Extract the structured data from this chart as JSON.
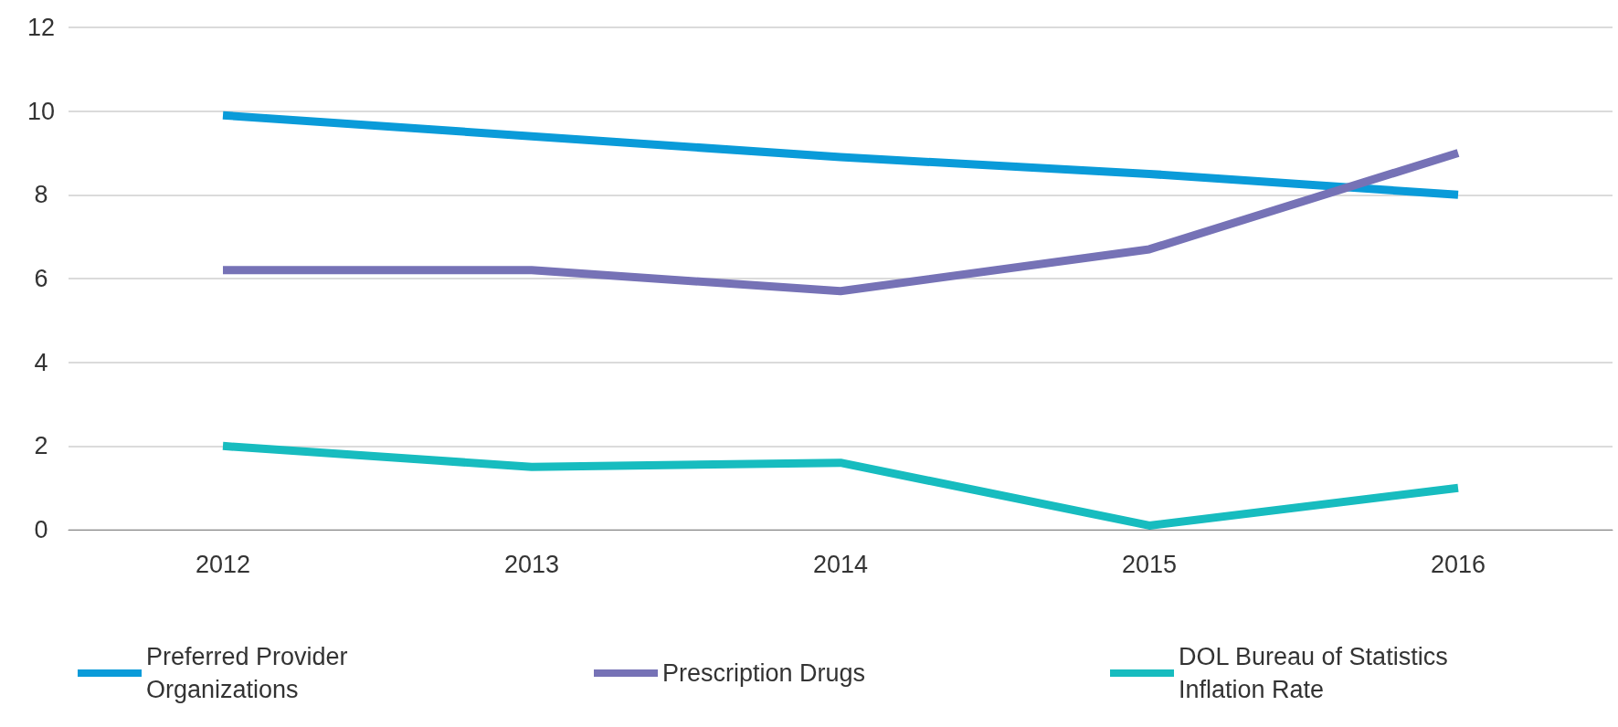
{
  "chart_data": {
    "type": "line",
    "categories": [
      "2012",
      "2013",
      "2014",
      "2015",
      "2016"
    ],
    "series": [
      {
        "name": "Preferred Provider Organizations",
        "color": "#0a9bd9",
        "values": [
          9.9,
          9.4,
          8.9,
          8.5,
          8.0
        ]
      },
      {
        "name": "Prescription Drugs",
        "color": "#7672b6",
        "values": [
          6.2,
          6.2,
          5.7,
          6.7,
          9.0
        ]
      },
      {
        "name": "DOL Bureau of Statistics Inflation Rate",
        "color": "#17bcbf",
        "values": [
          2.0,
          1.5,
          1.6,
          0.1,
          1.0
        ]
      }
    ],
    "ylim": [
      0,
      12
    ],
    "yticks": [
      0,
      2,
      4,
      6,
      8,
      10,
      12
    ],
    "grid": "y",
    "legend": "bottom",
    "marker": "none",
    "line_style": "solid"
  }
}
